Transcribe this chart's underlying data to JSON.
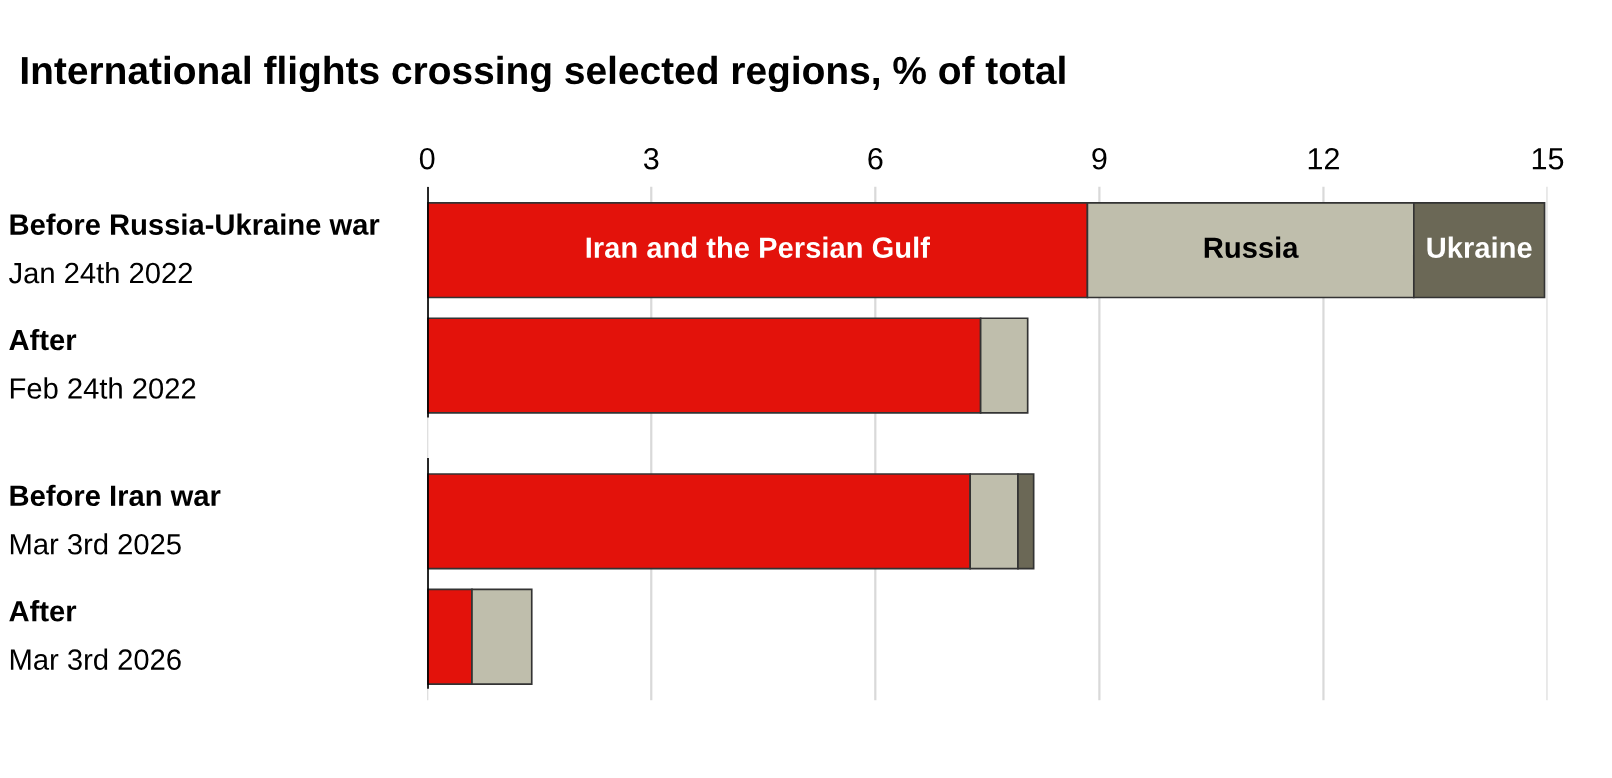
{
  "chart_data": {
    "type": "bar",
    "orientation": "horizontal",
    "stacked": true,
    "title": "International flights crossing selected regions, % of total",
    "categories": [
      "Before Russia-Ukraine war\nJan 24th 2022",
      "After\nFeb 24th 2022",
      "Before Iran war\nMar 3rd 2025",
      "After\nMar 3rd 2026"
    ],
    "series": [
      {
        "name": "Iran and the Persian Gulf",
        "color": "#e3120b",
        "values": [
          8.84,
          7.41,
          7.27,
          0.6
        ]
      },
      {
        "name": "Russia",
        "color": "#bfbeac",
        "values": [
          4.37,
          0.63,
          0.64,
          0.8
        ]
      },
      {
        "name": "Ukraine",
        "color": "#6b6856",
        "values": [
          1.75,
          null,
          0.21,
          null
        ]
      }
    ],
    "xlim": [
      0,
      15
    ],
    "xticks": [
      0,
      3,
      6,
      9,
      12,
      15
    ],
    "grid": "x",
    "legend": false
  }
}
